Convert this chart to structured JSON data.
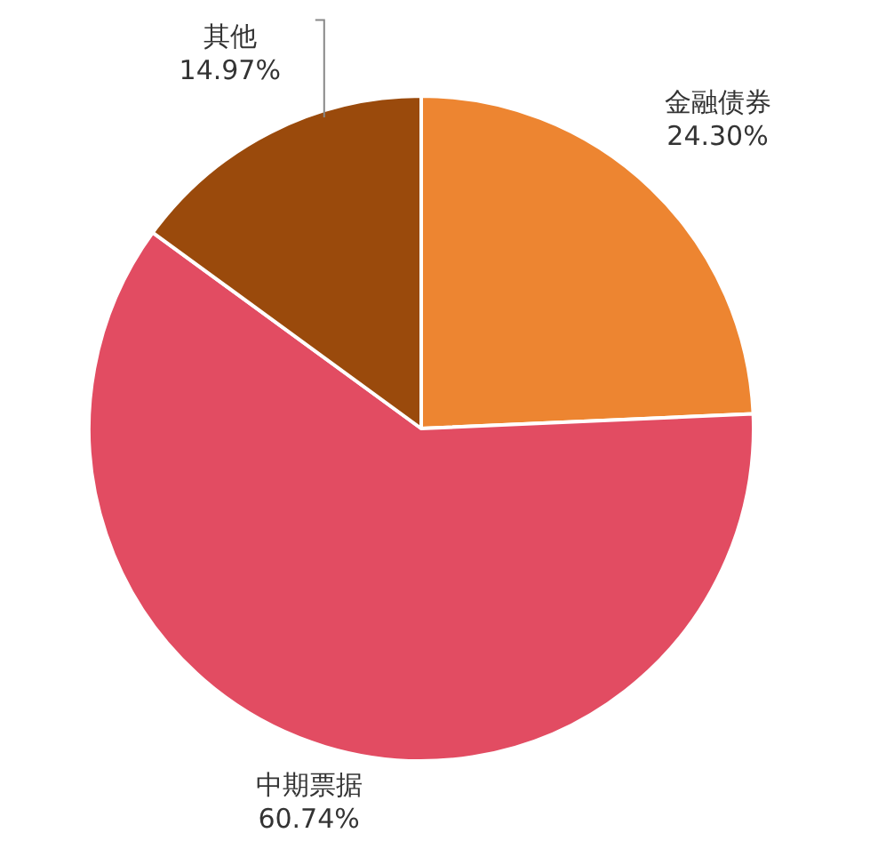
{
  "chart_data": {
    "type": "pie",
    "categories": [
      "金融债券",
      "中期票据",
      "其他"
    ],
    "values": [
      24.3,
      60.74,
      14.97
    ],
    "value_labels": [
      "24.30%",
      "60.74%",
      "14.97%"
    ],
    "colors": [
      "#ed8531",
      "#e24c62",
      "#9a4a0c"
    ]
  }
}
